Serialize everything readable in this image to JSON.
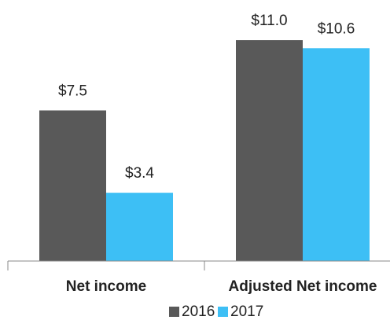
{
  "chart_data": {
    "type": "bar",
    "categories": [
      "Net income",
      "Adjusted Net income"
    ],
    "series": [
      {
        "name": "2016",
        "color": "#595959",
        "values": [
          7.5,
          11.0
        ],
        "value_labels": [
          "$7.5",
          "$11.0"
        ]
      },
      {
        "name": "2017",
        "color": "#3dbff5",
        "values": [
          3.4,
          10.6
        ],
        "value_labels": [
          "$3.4",
          "$10.6"
        ]
      }
    ],
    "ylim": [
      0,
      13
    ]
  }
}
